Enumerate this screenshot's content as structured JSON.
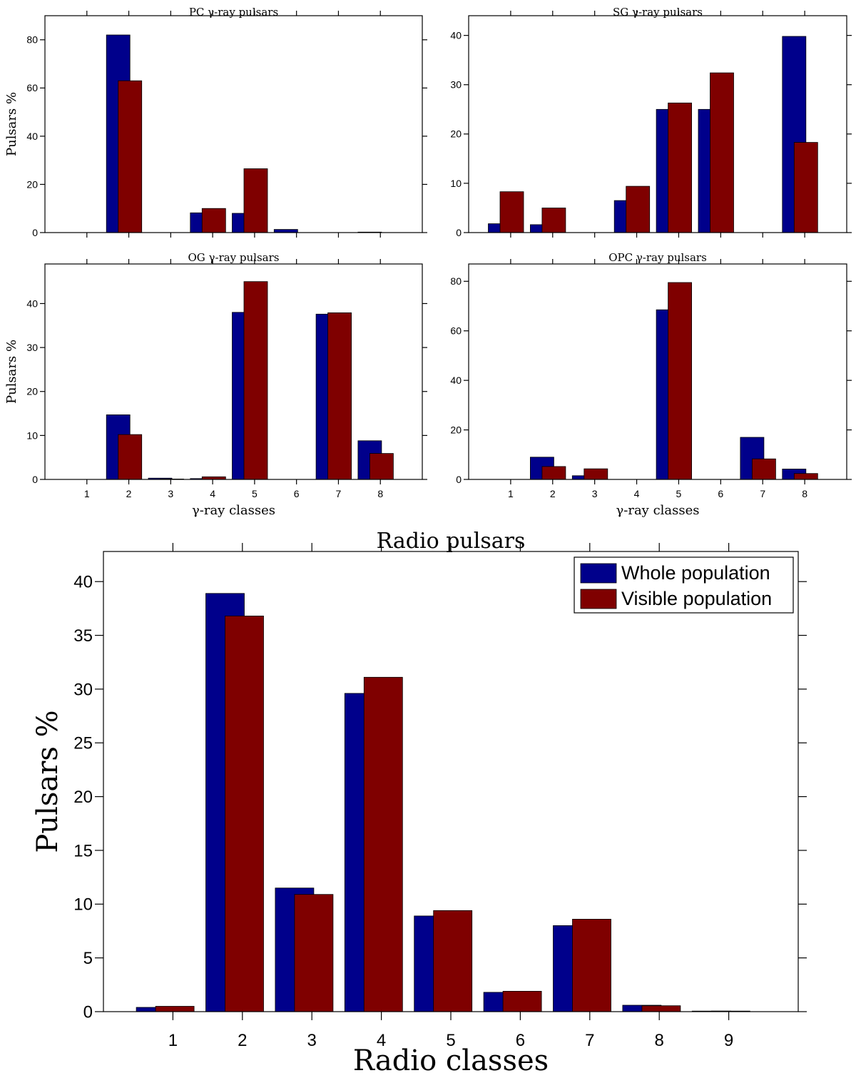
{
  "colors": {
    "whole": "#00008b",
    "visible": "#7f0000",
    "axis": "#000000",
    "background": "#ffffff"
  },
  "chart_data": [
    {
      "id": "pc",
      "type": "bar",
      "title": "PC γ-ray pulsars",
      "xlabel": "",
      "ylabel": "Pulsars %",
      "categories": [
        "1",
        "2",
        "3",
        "4",
        "5",
        "6",
        "7",
        "8"
      ],
      "xticklabels_visible": false,
      "yticks": [
        0,
        20,
        40,
        60,
        80
      ],
      "ylim": [
        0,
        90
      ],
      "series": [
        {
          "name": "Whole population",
          "values": [
            0,
            82,
            0,
            8.2,
            8,
            1.3,
            0,
            0.2
          ]
        },
        {
          "name": "Visible population",
          "values": [
            0,
            63,
            0,
            10,
            26.5,
            0,
            0,
            0
          ]
        }
      ]
    },
    {
      "id": "sg",
      "type": "bar",
      "title": "SG γ-ray pulsars",
      "xlabel": "",
      "ylabel": "",
      "categories": [
        "1",
        "2",
        "3",
        "4",
        "5",
        "6",
        "7",
        "8"
      ],
      "xticklabels_visible": false,
      "yticks": [
        0,
        10,
        20,
        30,
        40
      ],
      "ylim": [
        0,
        44
      ],
      "series": [
        {
          "name": "Whole population",
          "values": [
            1.8,
            1.6,
            0,
            6.5,
            25,
            25,
            0,
            39.8
          ]
        },
        {
          "name": "Visible population",
          "values": [
            8.3,
            5,
            0,
            9.4,
            26.3,
            32.4,
            0,
            18.3
          ]
        }
      ]
    },
    {
      "id": "og",
      "type": "bar",
      "title": "OG γ-ray pulsars",
      "xlabel": "γ-ray classes",
      "ylabel": "Pulsars %",
      "categories": [
        "1",
        "2",
        "3",
        "4",
        "5",
        "6",
        "7",
        "8"
      ],
      "xticklabels_visible": true,
      "yticks": [
        0,
        10,
        20,
        30,
        40
      ],
      "ylim": [
        0,
        49
      ],
      "series": [
        {
          "name": "Whole population",
          "values": [
            0,
            14.7,
            0.3,
            0.2,
            38,
            0,
            37.6,
            8.8
          ]
        },
        {
          "name": "Visible population",
          "values": [
            0,
            10.2,
            0.1,
            0.6,
            45,
            0,
            37.9,
            5.9
          ]
        }
      ]
    },
    {
      "id": "opc",
      "type": "bar",
      "title": "OPC γ-ray pulsars",
      "xlabel": "γ-ray classes",
      "ylabel": "",
      "categories": [
        "1",
        "2",
        "3",
        "4",
        "5",
        "6",
        "7",
        "8"
      ],
      "xticklabels_visible": true,
      "yticks": [
        0,
        20,
        40,
        60,
        80
      ],
      "ylim": [
        0,
        87
      ],
      "series": [
        {
          "name": "Whole population",
          "values": [
            0,
            9,
            1.5,
            0,
            68.5,
            0,
            17,
            4.2
          ]
        },
        {
          "name": "Visible population",
          "values": [
            0,
            5.2,
            4.3,
            0,
            79.5,
            0,
            8.3,
            2.4
          ]
        }
      ]
    },
    {
      "id": "radio",
      "type": "bar",
      "title": "Radio pulsars",
      "xlabel": "Radio classes",
      "ylabel": "Pulsars %",
      "categories": [
        "1",
        "2",
        "3",
        "4",
        "5",
        "6",
        "7",
        "8",
        "9"
      ],
      "xticklabels_visible": true,
      "yticks": [
        0,
        5,
        10,
        15,
        20,
        25,
        30,
        35,
        40
      ],
      "ylim": [
        0,
        42.8
      ],
      "legend": {
        "entries": [
          "Whole population",
          "Visible population"
        ],
        "placement": "top-right"
      },
      "series": [
        {
          "name": "Whole population",
          "values": [
            0.4,
            38.9,
            11.5,
            29.6,
            8.9,
            1.8,
            8.0,
            0.6,
            0.05
          ]
        },
        {
          "name": "Visible population",
          "values": [
            0.5,
            36.8,
            10.9,
            31.1,
            9.4,
            1.9,
            8.6,
            0.55,
            0.05
          ]
        }
      ]
    }
  ]
}
